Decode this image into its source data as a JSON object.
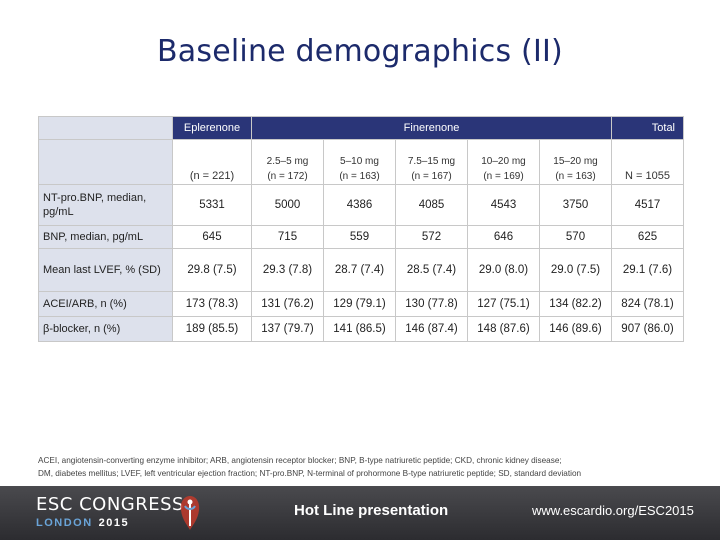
{
  "slide": {
    "title": "Baseline demographics (II)"
  },
  "table": {
    "group_headers": {
      "eplerenone": "Eplerenone",
      "finerenone": "Finerenone",
      "total": "Total"
    },
    "columns": [
      {
        "dose": "",
        "n": "(n = 221)"
      },
      {
        "dose": "2.5–5 mg",
        "n": "(n = 172)"
      },
      {
        "dose": "5–10 mg",
        "n": "(n = 163)"
      },
      {
        "dose": "7.5–15 mg",
        "n": "(n = 167)"
      },
      {
        "dose": "10–20 mg",
        "n": "(n = 169)"
      },
      {
        "dose": "15–20 mg",
        "n": "(n = 163)"
      },
      {
        "dose": "",
        "n": "N = 1055"
      }
    ],
    "rows": [
      {
        "label": "NT-pro.BNP, median, pg/mL",
        "values": [
          "5331",
          "5000",
          "4386",
          "4085",
          "4543",
          "3750",
          "4517"
        ]
      },
      {
        "label": "BNP, median, pg/mL",
        "values": [
          "645",
          "715",
          "559",
          "572",
          "646",
          "570",
          "625"
        ]
      },
      {
        "label": "Mean last LVEF, % (SD)",
        "values": [
          "29.8 (7.5)",
          "29.3 (7.8)",
          "28.7 (7.4)",
          "28.5 (7.4)",
          "29.0 (8.0)",
          "29.0 (7.5)",
          "29.1 (7.6)"
        ]
      },
      {
        "label": "ACEI/ARB, n (%)",
        "values": [
          "173 (78.3)",
          "131 (76.2)",
          "129 (79.1)",
          "130 (77.8)",
          "127 (75.1)",
          "134 (82.2)",
          "824 (78.1)"
        ]
      },
      {
        "label": "β-blocker, n (%)",
        "values": [
          "189 (85.5)",
          "137 (79.7)",
          "141 (86.5)",
          "146 (87.4)",
          "148 (87.6)",
          "146 (89.6)",
          "907 (86.0)"
        ]
      }
    ]
  },
  "footnote": {
    "line1": "ACEI, angiotensin-converting enzyme inhibitor; ARB, angiotensin receptor blocker; BNP, B-type natriuretic peptide; CKD, chronic kidney disease;",
    "line2": "DM, diabetes mellitus; LVEF, left ventricular ejection fraction; NT-pro.BNP, N-terminal of prohormone B-type natriuretic peptide; SD, standard deviation"
  },
  "footer": {
    "congress": "ESC CONGRESS",
    "city": "LONDON",
    "year": "2015",
    "presentation": "Hot Line presentation",
    "website": "www.escardio.org/ESC2015"
  },
  "colors": {
    "title": "#1c2a6b",
    "header_band": "#2a3578",
    "footer_bg": "#2c2c30",
    "city_accent": "#6aa4d8"
  }
}
